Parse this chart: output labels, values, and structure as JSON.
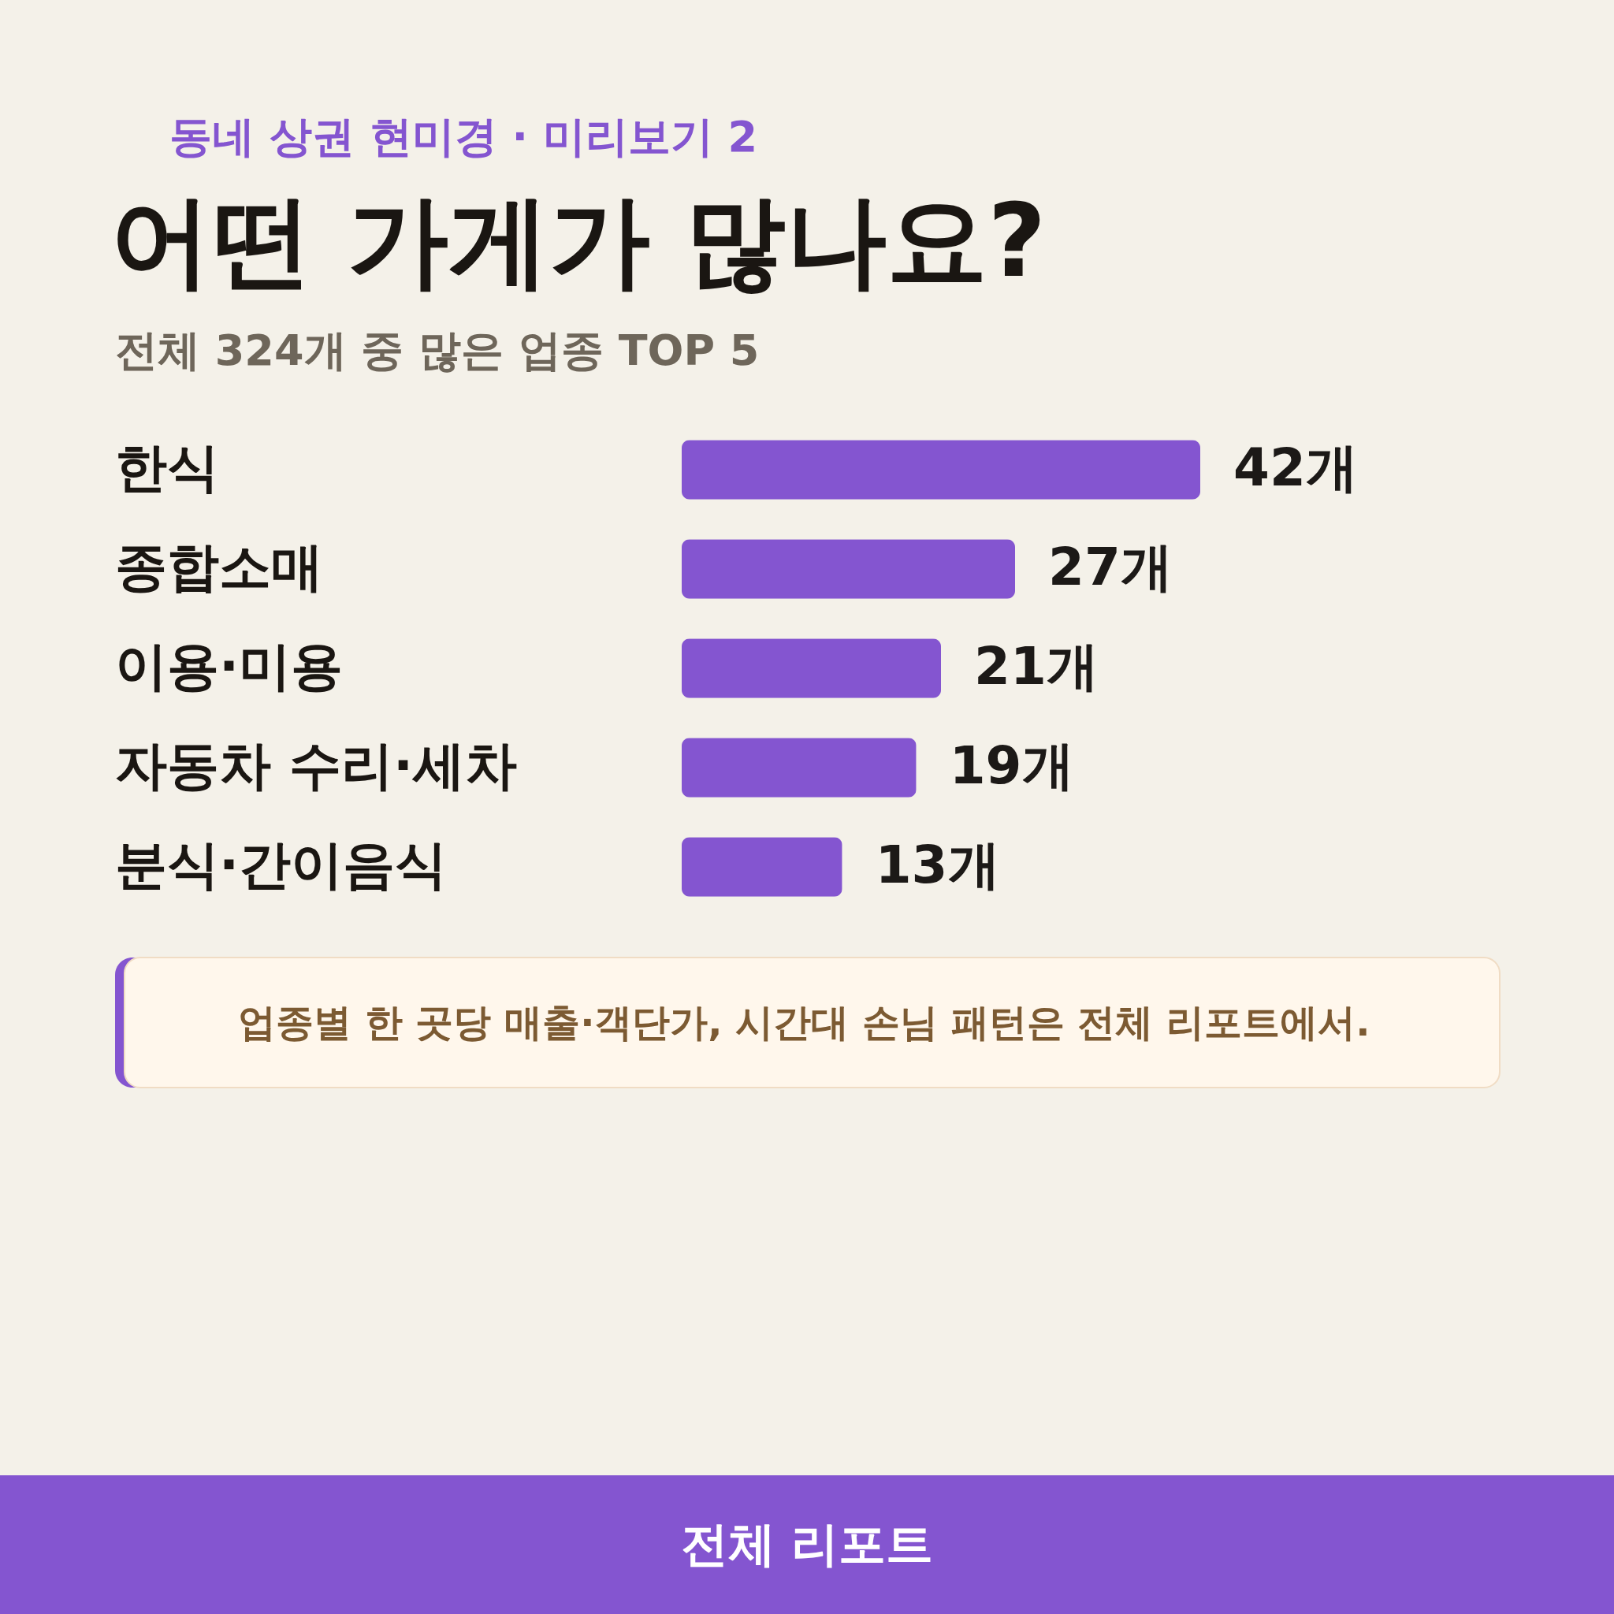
{
  "chart_data": {
    "type": "bar",
    "orientation": "horizontal",
    "title": "어떤 가게가 많나요?",
    "subtitle": "전체 324개 중 많은 업종 TOP 5",
    "categories": [
      "한식",
      "종합소매",
      "이용·미용",
      "자동차 수리·세차",
      "분식·간이음식"
    ],
    "values": [
      42,
      27,
      21,
      19,
      13
    ],
    "color": "#8455d0",
    "value_labels": [
      "42개",
      "27개",
      "21개",
      "19개",
      "13개"
    ],
    "annotations": [
      "동네 상권 현미경 · 미리보기 2",
      "업종별 한 곳당 매출·객단가, 시간대 손님 패턴은 전체 리포트에서.",
      "전체 리포트"
    ]
  }
}
